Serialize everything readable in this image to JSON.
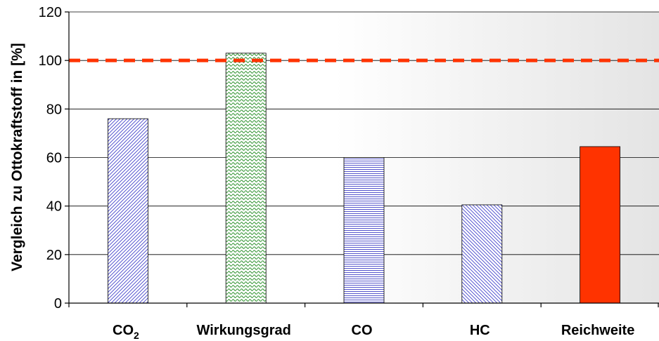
{
  "chart_data": {
    "type": "bar",
    "title": "",
    "ylabel": "Vergleich zu Ottokraftstoff in [%]",
    "xlabel": "",
    "ylim": [
      0,
      120
    ],
    "yticks": [
      0,
      20,
      40,
      60,
      80,
      100,
      120
    ],
    "categories": [
      {
        "main": "CO",
        "sub": "2"
      },
      {
        "main": "Wirkungsgrad",
        "sub": ""
      },
      {
        "main": "CO",
        "sub": ""
      },
      {
        "main": "HC",
        "sub": ""
      },
      {
        "main": "Reichweite",
        "sub": ""
      }
    ],
    "values": [
      76,
      103,
      60,
      40.5,
      64.5
    ],
    "bar_styles": [
      "diagonal-hatch",
      "wave-hatch",
      "horizontal-hatch",
      "diagonal-hatch",
      "solid"
    ],
    "bar_colors": [
      "#3333cc",
      "#1f8a1f",
      "#3333cc",
      "#3333cc",
      "#ff3300"
    ],
    "reference_line": {
      "value": 100,
      "color": "#ff3300",
      "style": "dashed"
    },
    "grid": true,
    "background": "gradient white to light gray"
  }
}
